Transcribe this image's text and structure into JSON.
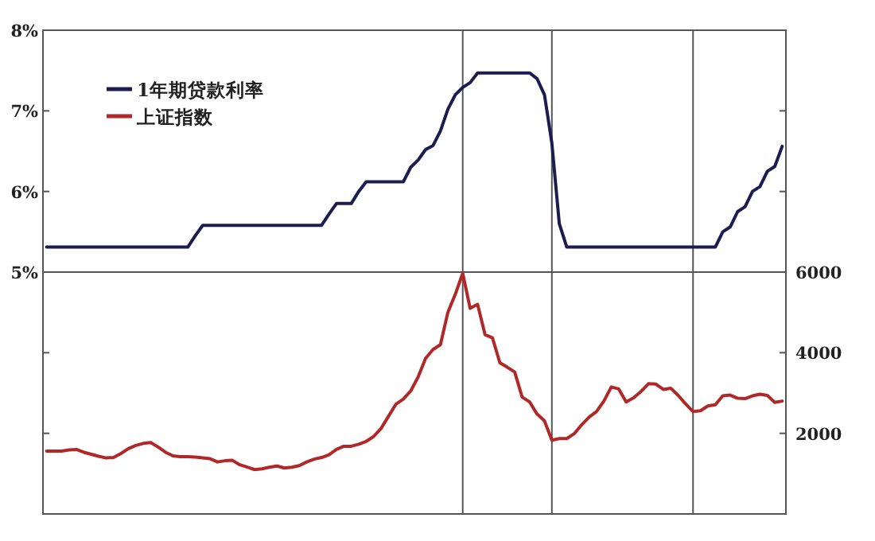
{
  "chart_data": {
    "type": "line",
    "categories": [
      null,
      null,
      null,
      null,
      null,
      null,
      null,
      null,
      null,
      null,
      null,
      null,
      null,
      null,
      null,
      null,
      null,
      null,
      null,
      null,
      null,
      null,
      null,
      null,
      null,
      null,
      null,
      null,
      null,
      null,
      null,
      null,
      null,
      null,
      null,
      null,
      null,
      null,
      null,
      null,
      null,
      null,
      null,
      null,
      null,
      null,
      null,
      null,
      null,
      null,
      null,
      null,
      null,
      null,
      null,
      null,
      null,
      null,
      null,
      null,
      null,
      null,
      null,
      null,
      null,
      null,
      null,
      null,
      null,
      null,
      null,
      null,
      null,
      null,
      null,
      null,
      null,
      null,
      null,
      null,
      null,
      null,
      null,
      null,
      null,
      null,
      null,
      null,
      null,
      null,
      null,
      null,
      null,
      null,
      null,
      null,
      null,
      null,
      null,
      null
    ],
    "ylim": [
      2,
      8
    ],
    "yticks": [
      {
        "value": 5,
        "label": "5%"
      },
      {
        "value": 6,
        "label": "6%"
      },
      {
        "value": 7,
        "label": "7%"
      },
      {
        "value": 8,
        "label": "8%"
      }
    ],
    "y2lim": [
      0,
      12000
    ],
    "y2ticks": [
      2000,
      4000,
      6000
    ],
    "grid": "x",
    "legend": "top left",
    "marker": "none",
    "line_style": "solid",
    "ref_lines": [
      {
        "axis": "y",
        "value": 5
      }
    ],
    "series": [
      {
        "name": "1年期贷款利率",
        "color": "#1c1c50",
        "axis": "y",
        "values": [
          5.31,
          5.31,
          5.31,
          5.31,
          5.31,
          5.31,
          5.31,
          5.31,
          5.31,
          5.31,
          5.31,
          5.31,
          5.31,
          5.31,
          5.31,
          5.31,
          5.31,
          5.31,
          5.31,
          5.31,
          5.45,
          5.58,
          5.58,
          5.58,
          5.58,
          5.58,
          5.58,
          5.58,
          5.58,
          5.58,
          5.58,
          5.58,
          5.58,
          5.58,
          5.58,
          5.58,
          5.58,
          5.58,
          5.72,
          5.85,
          5.85,
          5.85,
          6.0,
          6.12,
          6.12,
          6.12,
          6.12,
          6.12,
          6.12,
          6.3,
          6.39,
          6.52,
          6.57,
          6.75,
          7.02,
          7.2,
          7.29,
          7.35,
          7.47,
          7.47,
          7.47,
          7.47,
          7.47,
          7.47,
          7.47,
          7.47,
          7.4,
          7.2,
          6.6,
          5.6,
          5.31,
          5.31,
          5.31,
          5.31,
          5.31,
          5.31,
          5.31,
          5.31,
          5.31,
          5.31,
          5.31,
          5.31,
          5.31,
          5.31,
          5.31,
          5.31,
          5.31,
          5.31,
          5.31,
          5.31,
          5.31,
          5.5,
          5.56,
          5.75,
          5.81,
          6.0,
          6.06,
          6.25,
          6.31,
          6.56
        ]
      },
      {
        "name": "上证指数",
        "color": "#b02828",
        "axis": "y2",
        "values": [
          1560,
          1560,
          1560,
          1590,
          1600,
          1530,
          1480,
          1430,
          1390,
          1400,
          1500,
          1620,
          1700,
          1750,
          1770,
          1660,
          1530,
          1440,
          1420,
          1420,
          1410,
          1390,
          1370,
          1290,
          1320,
          1330,
          1220,
          1160,
          1100,
          1120,
          1160,
          1190,
          1140,
          1160,
          1200,
          1290,
          1360,
          1400,
          1470,
          1600,
          1680,
          1680,
          1730,
          1800,
          1920,
          2120,
          2420,
          2720,
          2850,
          3050,
          3400,
          3860,
          4080,
          4200,
          5000,
          5450,
          5970,
          5100,
          5200,
          4450,
          4370,
          3750,
          3640,
          3520,
          2900,
          2780,
          2480,
          2310,
          1830,
          1870,
          1870,
          1990,
          2210,
          2400,
          2540,
          2800,
          3150,
          3100,
          2780,
          2880,
          3040,
          3230,
          3220,
          3090,
          3120,
          2940,
          2730,
          2540,
          2560,
          2680,
          2710,
          2930,
          2950,
          2870,
          2860,
          2930,
          2970,
          2940,
          2770,
          2800
        ]
      }
    ]
  }
}
